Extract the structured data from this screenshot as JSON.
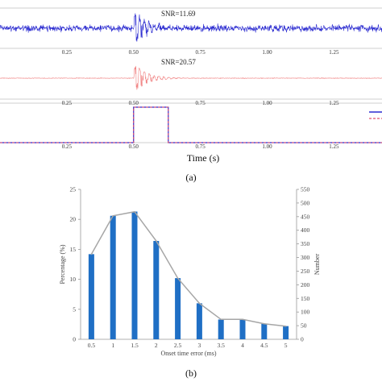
{
  "panel_a": {
    "caption": "(a)",
    "xlabel": "Time (s)",
    "tick_labels": [
      "0.25",
      "0.50",
      "0.75",
      "1.00",
      "1.25"
    ],
    "tick_values": [
      0.25,
      0.5,
      0.75,
      1.0,
      1.25
    ],
    "x_range": [
      0.0,
      1.43
    ],
    "traces": [
      {
        "snr_label": "SNR=11.69",
        "color": "#2a2ad0",
        "style": "noisy-seismogram",
        "onset_s": 0.5
      },
      {
        "snr_label": "SNR=20.57",
        "color": "#f08080",
        "style": "clean-seismogram",
        "onset_s": 0.5
      },
      {
        "style": "window",
        "window_start_s": 0.5,
        "window_end_s": 0.63,
        "colors": [
          "#2a2ad0",
          "#e0506e"
        ]
      }
    ]
  },
  "chart_data": {
    "type": "bar",
    "caption": "(b)",
    "xlabel": "Onset time error (ms)",
    "ylabel": "Percentage (%)",
    "y2label": "Number",
    "categories": [
      "0.5",
      "1",
      "1.5",
      "2",
      "2.5",
      "3",
      "3.5",
      "4",
      "4.5",
      "5"
    ],
    "series": [
      {
        "type": "bar",
        "axis": "left",
        "color": "#1f6fc5",
        "values": [
          14.2,
          20.6,
          21.3,
          16.4,
          10.2,
          6.0,
          3.3,
          3.3,
          2.6,
          2.2
        ]
      },
      {
        "type": "line",
        "axis": "right",
        "color": "#a6a6a6",
        "values": [
          312,
          453,
          468,
          361,
          224,
          132,
          73,
          73,
          57,
          48
        ]
      }
    ],
    "ylim": [
      0,
      25
    ],
    "yticks": [
      0,
      5,
      10,
      15,
      20,
      25
    ],
    "y2lim": [
      0,
      550
    ],
    "y2ticks": [
      0,
      50,
      100,
      150,
      200,
      250,
      300,
      350,
      400,
      450,
      500,
      550
    ]
  }
}
